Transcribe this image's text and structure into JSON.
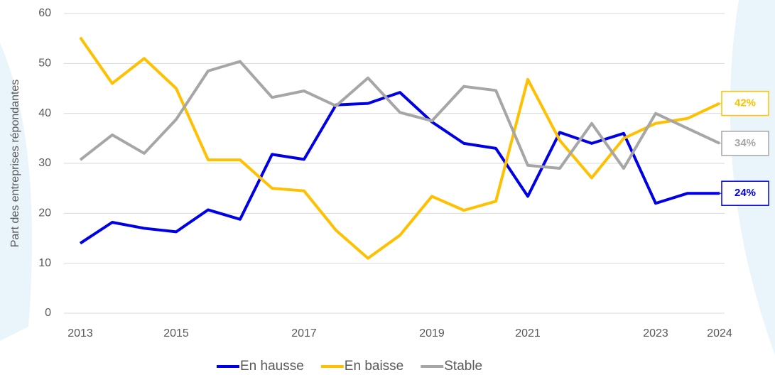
{
  "chart_data": {
    "type": "line",
    "y_label": "Part des entreprises répondantes",
    "categories": [
      "2013",
      null,
      null,
      "2015",
      null,
      null,
      null,
      "2017",
      null,
      null,
      null,
      "2019",
      null,
      null,
      "2021",
      null,
      null,
      null,
      "2023",
      null,
      "2024"
    ],
    "ylim": [
      0,
      60
    ],
    "yticks": [
      0,
      10,
      20,
      30,
      40,
      50,
      60
    ],
    "grid": true,
    "legend": "bottom",
    "series": [
      {
        "name": "En hausse",
        "color": "#0000e6",
        "values": [
          14,
          18.2,
          17,
          16.3,
          20.7,
          18.8,
          31.8,
          30.8,
          41.7,
          42,
          44.2,
          38.3,
          34,
          33,
          23.4,
          36.2,
          34,
          36,
          22,
          24,
          24
        ],
        "value_labels": [
          null,
          null,
          null,
          null,
          null,
          null,
          null,
          null,
          null,
          null,
          null,
          null,
          null,
          null,
          null,
          null,
          null,
          null,
          null,
          null,
          "24%"
        ]
      },
      {
        "name": "En baisse",
        "color": "#ffc000",
        "values": [
          55.2,
          46,
          51,
          45,
          30.7,
          30.7,
          25,
          24.5,
          16.6,
          11,
          15.6,
          23.4,
          20.6,
          22.4,
          46.8,
          34.6,
          27.1,
          35,
          38,
          39,
          42
        ],
        "value_labels": [
          null,
          null,
          null,
          null,
          null,
          null,
          null,
          null,
          null,
          null,
          null,
          null,
          null,
          null,
          null,
          null,
          null,
          null,
          null,
          null,
          "42%"
        ]
      },
      {
        "name": "Stable",
        "color": "#a6a6a6",
        "values": [
          30.7,
          35.7,
          32,
          38.8,
          48.5,
          50.4,
          43.2,
          44.5,
          41.5,
          47.1,
          40.2,
          38.5,
          45.4,
          44.6,
          29.6,
          29,
          38,
          29,
          40,
          37,
          34
        ],
        "value_labels": [
          null,
          null,
          null,
          null,
          null,
          null,
          null,
          null,
          null,
          null,
          null,
          null,
          null,
          null,
          null,
          null,
          null,
          null,
          null,
          null,
          "34%"
        ]
      }
    ]
  }
}
